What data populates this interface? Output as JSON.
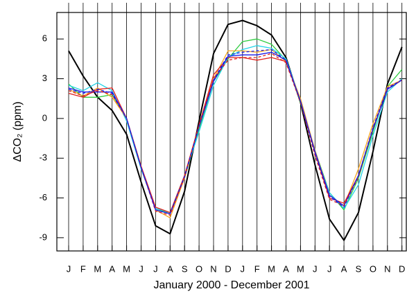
{
  "chart_data": {
    "type": "line",
    "x_label": "January 2000 - December 2001",
    "y_label": "ΔCO₂ (ppm)",
    "categories": [
      "J",
      "F",
      "M",
      "A",
      "M",
      "J",
      "J",
      "A",
      "S",
      "O",
      "N",
      "D",
      "J",
      "F",
      "M",
      "A",
      "M",
      "J",
      "J",
      "A",
      "S",
      "O",
      "N",
      "D"
    ],
    "ylim": [
      -10,
      8
    ],
    "yticks": [
      6,
      3,
      0,
      -3,
      -6,
      -9
    ],
    "grid": "x",
    "series": [
      {
        "color": "#000000",
        "linewidth": 2,
        "values": [
          5.1,
          3.2,
          1.6,
          0.6,
          -1.2,
          -4.8,
          -8.1,
          -8.7,
          -5.5,
          -0.2,
          4.9,
          7.1,
          7.4,
          7.0,
          6.3,
          4.6,
          1.2,
          -3.5,
          -7.6,
          -9.2,
          -7.1,
          -2.5,
          2.6,
          5.4
        ]
      },
      {
        "color": "#2ecc40",
        "values": [
          2.6,
          1.6,
          1.6,
          1.8,
          0.0,
          -3.8,
          -6.8,
          -7.2,
          -4.5,
          -0.8,
          2.8,
          4.5,
          5.8,
          6.0,
          5.6,
          4.4,
          1.2,
          -2.4,
          -5.6,
          -6.9,
          -4.5,
          -1.0,
          2.4,
          3.7
        ]
      },
      {
        "color": "#22d3e6",
        "values": [
          2.5,
          2.1,
          2.7,
          2.1,
          -0.2,
          -3.8,
          -6.8,
          -7.1,
          -4.3,
          -1.0,
          2.5,
          4.6,
          5.2,
          5.5,
          5.3,
          4.5,
          1.4,
          -2.6,
          -5.6,
          -6.8,
          -5.0,
          -1.3,
          2.0,
          3.0
        ]
      },
      {
        "color": "#f5a623",
        "values": [
          2.2,
          1.7,
          2.3,
          1.6,
          0.0,
          -3.6,
          -6.9,
          -7.5,
          -4.5,
          -0.5,
          3.0,
          5.1,
          5.1,
          5.0,
          5.2,
          4.3,
          1.5,
          -2.4,
          -5.8,
          -6.6,
          -3.8,
          -0.4,
          2.4,
          2.9
        ]
      },
      {
        "color": "#e0201b",
        "values": [
          1.9,
          1.6,
          2.2,
          2.3,
          0.0,
          -3.6,
          -6.7,
          -7.1,
          -4.3,
          -0.5,
          3.3,
          4.6,
          4.6,
          4.4,
          4.6,
          4.3,
          1.3,
          -2.6,
          -6.0,
          -6.4,
          -4.3,
          -0.8,
          2.2,
          2.9
        ]
      },
      {
        "color": "#1a1ae6",
        "values": [
          2.3,
          2.0,
          2.0,
          2.0,
          0.0,
          -3.7,
          -6.9,
          -7.2,
          -4.4,
          -0.6,
          2.8,
          4.7,
          4.8,
          4.8,
          5.0,
          4.4,
          1.3,
          -2.5,
          -5.8,
          -6.6,
          -4.3,
          -0.8,
          2.2,
          2.9
        ]
      },
      {
        "color": "#e0201b",
        "dashed": true,
        "values": [
          2.1,
          1.7,
          2.1,
          1.8,
          0.0,
          -3.7,
          -7.0,
          -7.3,
          -4.4,
          -0.5,
          3.0,
          4.4,
          4.6,
          4.6,
          4.9,
          4.2,
          1.2,
          -2.8,
          -6.1,
          -6.6,
          -4.4,
          -0.7,
          2.3,
          2.9
        ]
      },
      {
        "color": "#1a1ae6",
        "dashed": true,
        "values": [
          2.2,
          1.9,
          2.2,
          1.9,
          0.0,
          -3.7,
          -6.9,
          -7.2,
          -4.4,
          -0.6,
          2.9,
          4.8,
          5.0,
          5.1,
          5.2,
          4.4,
          1.3,
          -2.6,
          -5.9,
          -6.7,
          -4.3,
          -0.7,
          2.3,
          2.9
        ]
      }
    ]
  }
}
